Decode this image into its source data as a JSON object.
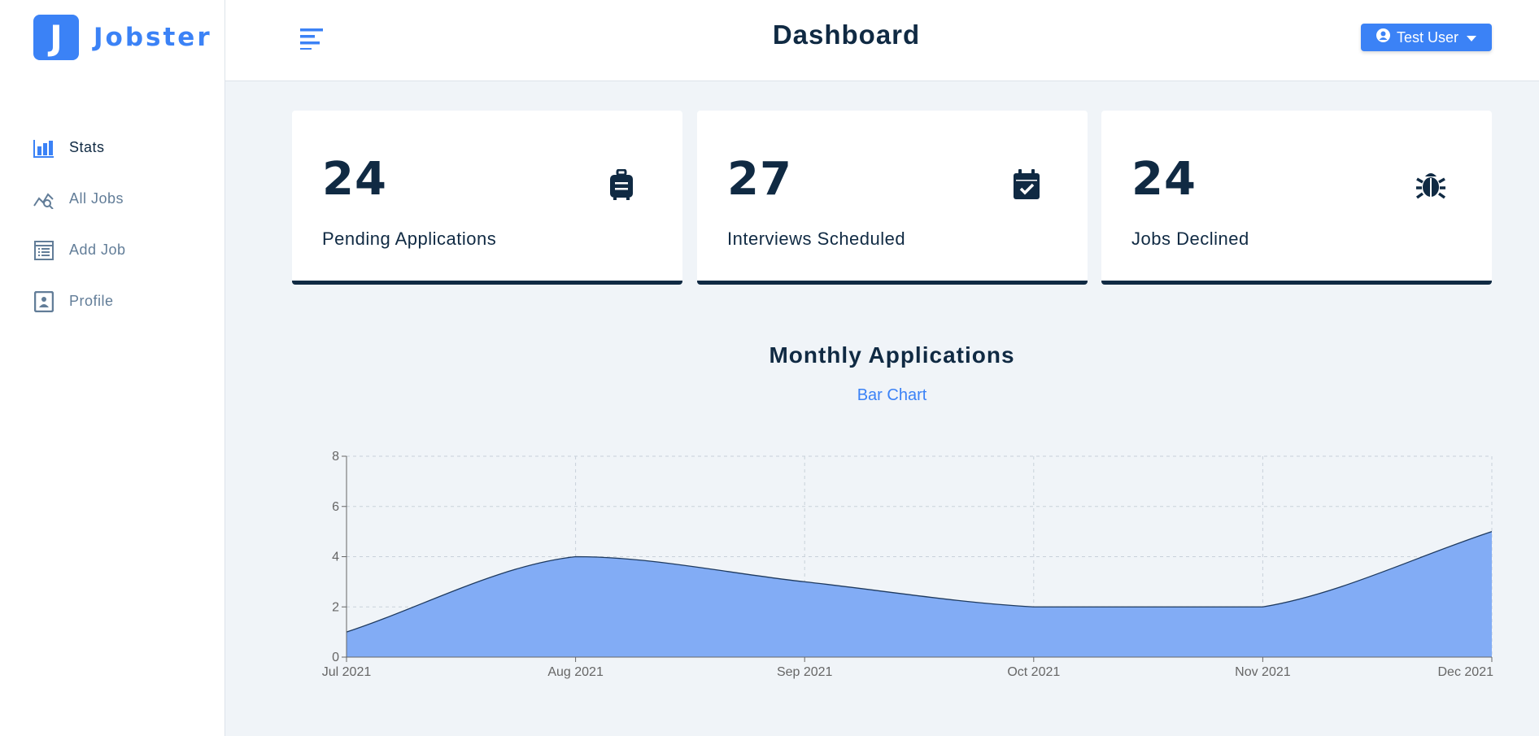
{
  "app": {
    "logo_letter": "J",
    "logo_name": "Jobster"
  },
  "sidebar": {
    "items": [
      {
        "label": "Stats",
        "icon": "bar-chart-icon",
        "active": true
      },
      {
        "label": "All Jobs",
        "icon": "chart-search-icon",
        "active": false
      },
      {
        "label": "Add Job",
        "icon": "form-list-icon",
        "active": false
      },
      {
        "label": "Profile",
        "icon": "id-card-icon",
        "active": false
      }
    ]
  },
  "header": {
    "title": "Dashboard",
    "user_label": "Test User"
  },
  "stats": [
    {
      "count": "24",
      "label": "Pending Applications",
      "icon": "suitcase-icon"
    },
    {
      "count": "27",
      "label": "Interviews Scheduled",
      "icon": "calendar-check-icon"
    },
    {
      "count": "24",
      "label": "Jobs Declined",
      "icon": "bug-icon"
    }
  ],
  "chart_section": {
    "title": "Monthly Applications",
    "toggle_label": "Bar Chart"
  },
  "colors": {
    "accent": "#3b82f6",
    "area_fill": "#82acf5",
    "dark": "#102a43",
    "background": "#f0f4f8"
  },
  "chart_data": {
    "type": "area",
    "x": [
      "Jul 2021",
      "Aug 2021",
      "Sep 2021",
      "Oct 2021",
      "Nov 2021",
      "Dec 2021"
    ],
    "values": [
      1,
      4,
      3,
      2,
      2,
      5
    ],
    "ylim": [
      0,
      8
    ],
    "yticks": [
      0,
      2,
      4,
      6,
      8
    ],
    "grid": true
  }
}
